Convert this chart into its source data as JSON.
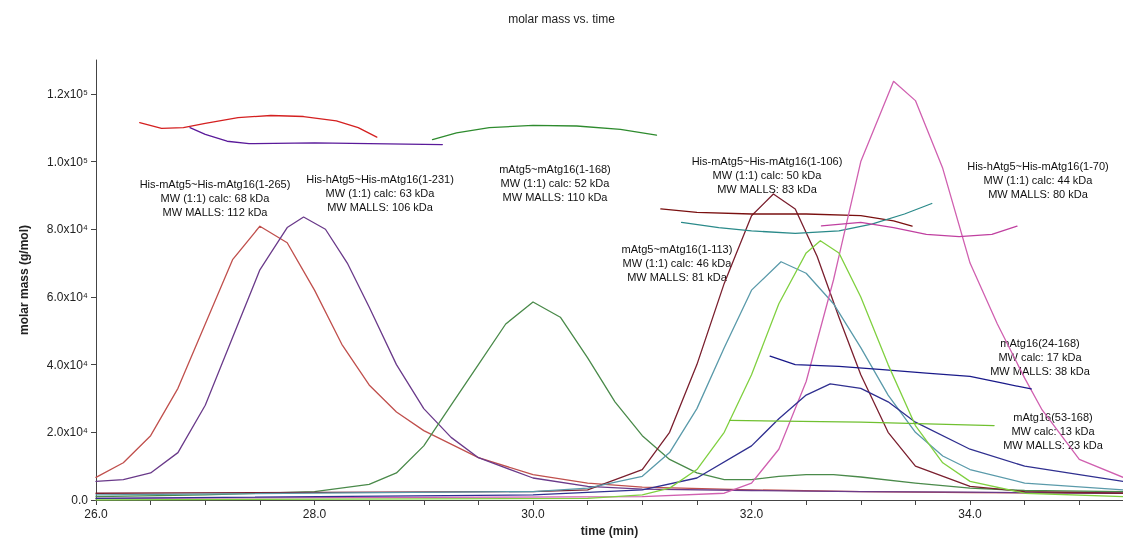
{
  "chart_data": {
    "type": "line",
    "title": "molar mass vs. time",
    "xlabel": "time (min)",
    "ylabel": "molar mass (g/mol)",
    "xlim": [
      26,
      35.4
    ],
    "ylim": [
      0,
      130000
    ],
    "xticks": [
      {
        "value": 26,
        "label": "26.0"
      },
      {
        "value": 26.5,
        "label": null
      },
      {
        "value": 27,
        "label": null
      },
      {
        "value": 27.5,
        "label": null
      },
      {
        "value": 28,
        "label": "28.0"
      },
      {
        "value": 28.5,
        "label": null
      },
      {
        "value": 29,
        "label": null
      },
      {
        "value": 29.5,
        "label": null
      },
      {
        "value": 30,
        "label": "30.0"
      },
      {
        "value": 30.5,
        "label": null
      },
      {
        "value": 31,
        "label": null
      },
      {
        "value": 31.5,
        "label": null
      },
      {
        "value": 32,
        "label": "32.0"
      },
      {
        "value": 32.5,
        "label": null
      },
      {
        "value": 33,
        "label": null
      },
      {
        "value": 33.5,
        "label": null
      },
      {
        "value": 34,
        "label": "34.0"
      },
      {
        "value": 34.5,
        "label": null
      },
      {
        "value": 35,
        "label": null
      }
    ],
    "yticks": [
      {
        "value": 0,
        "label": "0.0"
      },
      {
        "value": 20000,
        "label": "2.0x10⁴"
      },
      {
        "value": 40000,
        "label": "4.0x10⁴"
      },
      {
        "value": 60000,
        "label": "6.0x10⁴"
      },
      {
        "value": 80000,
        "label": "8.0x10⁴"
      },
      {
        "value": 100000,
        "label": "1.0x10⁵"
      },
      {
        "value": 120000,
        "label": "1.2x10⁵"
      }
    ],
    "grid": false,
    "marker": "none",
    "line_style": "solid",
    "series": [
      {
        "color": "#c0504d",
        "x": [
          26.0,
          26.25,
          26.5,
          26.75,
          27.0,
          27.25,
          27.5,
          27.75,
          28.0,
          28.25,
          28.5,
          28.75,
          29.0,
          29.5,
          30.0,
          30.5,
          31.0,
          32.0,
          33.0,
          34.0,
          35.4
        ],
        "values": [
          6700,
          11000,
          19000,
          33000,
          52000,
          71000,
          80900,
          76000,
          62000,
          46000,
          34000,
          26000,
          20500,
          12500,
          7500,
          5000,
          3800,
          3000,
          2500,
          2200,
          2000
        ]
      },
      {
        "color": "#d42020",
        "x": [
          26.4,
          26.6,
          26.8,
          27.0,
          27.3,
          27.6,
          27.9,
          28.2,
          28.4,
          28.57
        ],
        "values": [
          111500,
          109800,
          110000,
          111300,
          113000,
          113600,
          113300,
          112000,
          110000,
          107200
        ]
      },
      {
        "color": "#6a3a8a",
        "x": [
          26.0,
          26.25,
          26.5,
          26.75,
          27.0,
          27.25,
          27.5,
          27.75,
          27.9,
          28.1,
          28.3,
          28.5,
          28.75,
          29.0,
          29.25,
          29.5,
          30.0,
          30.5,
          31.0,
          32.0,
          33.0,
          34.0,
          35.4
        ],
        "values": [
          5500,
          6000,
          8000,
          14000,
          28000,
          48000,
          68000,
          80500,
          83600,
          80000,
          70000,
          57000,
          40000,
          27000,
          18500,
          12500,
          6500,
          4000,
          3200,
          2800,
          2500,
          2300,
          2000
        ]
      },
      {
        "color": "#5a1a9a",
        "x": [
          26.86,
          27.0,
          27.2,
          27.4,
          28.0,
          28.5,
          29.17
        ],
        "values": [
          110000,
          108000,
          106000,
          105300,
          105500,
          105300,
          105000
        ]
      },
      {
        "color": "#4a8a4a",
        "x": [
          26.0,
          27.0,
          28.0,
          28.5,
          28.75,
          29.0,
          29.25,
          29.5,
          29.75,
          30.0,
          30.25,
          30.5,
          30.75,
          31.0,
          31.25,
          31.5,
          31.75,
          32.0,
          32.25,
          32.5,
          32.75,
          33.0,
          33.5,
          34.0,
          34.5,
          35.4
        ],
        "values": [
          1000,
          1500,
          2500,
          4600,
          8000,
          16000,
          28000,
          40000,
          52000,
          58500,
          54000,
          42000,
          29000,
          19000,
          12000,
          8000,
          6000,
          6000,
          7000,
          7500,
          7500,
          6800,
          5000,
          3500,
          2800,
          2500
        ]
      },
      {
        "color": "#2e8b2e",
        "x": [
          29.08,
          29.3,
          29.6,
          30.0,
          30.4,
          30.8,
          31.13
        ],
        "values": [
          106500,
          108500,
          110000,
          110700,
          110500,
          109500,
          107800
        ]
      },
      {
        "color": "#7a1f2e",
        "x": [
          26.0,
          30.0,
          30.5,
          31.0,
          31.25,
          31.5,
          31.75,
          32.0,
          32.2,
          32.4,
          32.6,
          32.8,
          33.0,
          33.25,
          33.5,
          34.0,
          34.5,
          35.4
        ],
        "values": [
          2000,
          2500,
          3000,
          9000,
          20000,
          40000,
          64000,
          84000,
          90400,
          86000,
          72000,
          54000,
          37000,
          20000,
          10000,
          4000,
          2500,
          2000
        ]
      },
      {
        "color": "#7a1010",
        "x": [
          31.17,
          31.5,
          32.0,
          32.5,
          33.0,
          33.3,
          33.47
        ],
        "values": [
          86000,
          85000,
          84500,
          84500,
          84000,
          82500,
          80900
        ]
      },
      {
        "color": "#5a9aaa",
        "x": [
          26.0,
          30.0,
          30.5,
          31.0,
          31.25,
          31.5,
          31.75,
          32.0,
          32.27,
          32.5,
          32.75,
          33.0,
          33.25,
          33.5,
          33.75,
          34.0,
          34.5,
          35.4
        ],
        "values": [
          1500,
          2500,
          3500,
          7000,
          14000,
          27000,
          45000,
          62000,
          70400,
          67000,
          58000,
          45000,
          31000,
          20000,
          13000,
          9000,
          5000,
          3000
        ]
      },
      {
        "color": "#2a8a8a",
        "x": [
          31.36,
          31.7,
          32.0,
          32.4,
          32.8,
          33.1,
          33.4,
          33.65
        ],
        "values": [
          82000,
          80500,
          79500,
          78800,
          79500,
          81500,
          84500,
          87600
        ]
      },
      {
        "color": "#d060b0",
        "x": [
          26.0,
          31.0,
          31.75,
          32.0,
          32.25,
          32.5,
          32.75,
          33.0,
          33.3,
          33.5,
          33.75,
          34.0,
          34.25,
          34.5,
          34.66,
          35.0,
          35.4
        ],
        "values": [
          500,
          1000,
          2000,
          5000,
          15000,
          35000,
          65000,
          100000,
          123700,
          118000,
          98000,
          70000,
          52000,
          36000,
          26600,
          12000,
          6700
        ]
      },
      {
        "color": "#c040a0",
        "x": [
          32.64,
          33.0,
          33.3,
          33.6,
          33.9,
          34.2,
          34.43
        ],
        "values": [
          81000,
          82000,
          80500,
          78500,
          77800,
          78500,
          80900
        ]
      },
      {
        "color": "#303090",
        "x": [
          26.0,
          30.0,
          31.0,
          31.5,
          32.0,
          32.25,
          32.5,
          32.72,
          33.0,
          33.25,
          33.5,
          34.0,
          34.5,
          35.0,
          35.4
        ],
        "values": [
          500,
          1500,
          3000,
          6500,
          16000,
          24000,
          31000,
          34300,
          33000,
          29000,
          23000,
          15000,
          10000,
          7500,
          5500
        ]
      },
      {
        "color": "#1a1a8a",
        "x": [
          32.17,
          32.4,
          32.8,
          33.2,
          33.6,
          34.0,
          34.3,
          34.56
        ],
        "values": [
          42500,
          40000,
          39500,
          38500,
          37500,
          36500,
          34500,
          32800
        ]
      },
      {
        "color": "#80d040",
        "x": [
          26.0,
          30.5,
          31.0,
          31.25,
          31.5,
          31.75,
          32.0,
          32.25,
          32.5,
          32.63,
          32.8,
          33.0,
          33.25,
          33.5,
          33.75,
          34.0,
          34.5,
          35.4
        ],
        "values": [
          0,
          500,
          1500,
          3500,
          9000,
          20000,
          37000,
          58000,
          73000,
          76600,
          73000,
          60000,
          40000,
          22000,
          11000,
          5500,
          2000,
          1000
        ]
      },
      {
        "color": "#70c030",
        "x": [
          31.8,
          33.0,
          34.22
        ],
        "values": [
          23500,
          23000,
          22000
        ]
      }
    ],
    "annotations": [
      "His-mAtg5~His-mAtg16(1-265)\nMW (1:1) calc: 68 kDa\nMW MALLS: 112 kDa",
      "His-hAtg5~His-mAtg16(1-231)\nMW (1:1) calc: 63 kDa\nMW MALLS: 106 kDa",
      "mAtg5~mAtg16(1-168)\nMW (1:1) calc: 52 kDa\nMW MALLS: 110 kDa",
      "His-mAtg5~His-mAtg16(1-106)\nMW (1:1) calc: 50 kDa\nMW MALLS: 83 kDa",
      "mAtg5~mAtg16(1-113)\nMW (1:1) calc: 46 kDa\nMW MALLS: 81 kDa",
      "His-hAtg5~His-mAtg16(1-70)\nMW (1:1) calc: 44 kDa\nMW MALLS: 80 kDa",
      "mAtg16(24-168)\nMW calc: 17 kDa\nMW MALLS: 38 kDa",
      "mAtg16(53-168)\nMW calc: 13 kDa\nMW MALLS: 23 kDa"
    ]
  }
}
